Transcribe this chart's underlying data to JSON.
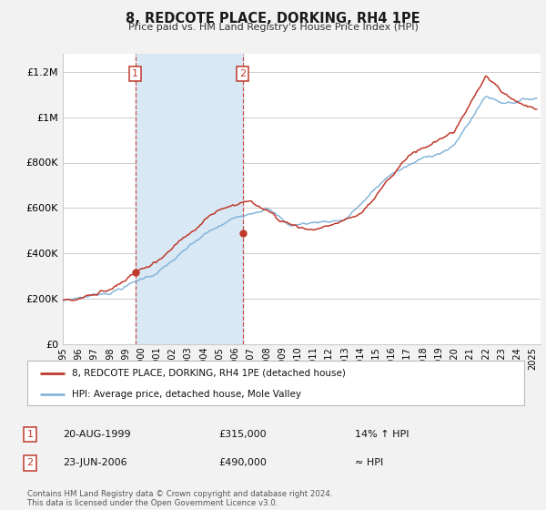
{
  "title": "8, REDCOTE PLACE, DORKING, RH4 1PE",
  "subtitle": "Price paid vs. HM Land Registry's House Price Index (HPI)",
  "ylim": [
    0,
    1280000
  ],
  "xlim_start": 1995.0,
  "xlim_end": 2025.5,
  "sale1_year": 1999.636,
  "sale1_price": 315000,
  "sale2_year": 2006.479,
  "sale2_price": 490000,
  "sale1_date": "20-AUG-1999",
  "sale1_hpi_rel": "14% ↑ HPI",
  "sale2_date": "23-JUN-2006",
  "sale2_hpi_rel": "≈ HPI",
  "legend_line1": "8, REDCOTE PLACE, DORKING, RH4 1PE (detached house)",
  "legend_line2": "HPI: Average price, detached house, Mole Valley",
  "footnote": "Contains HM Land Registry data © Crown copyright and database right 2024.\nThis data is licensed under the Open Government Licence v3.0.",
  "red_color": "#c0392b",
  "blue_color": "#7aaed6",
  "shade_color": "#d8e8f5",
  "background_color": "#f2f2f2",
  "plot_bg_color": "#ffffff",
  "grid_color": "#cccccc"
}
